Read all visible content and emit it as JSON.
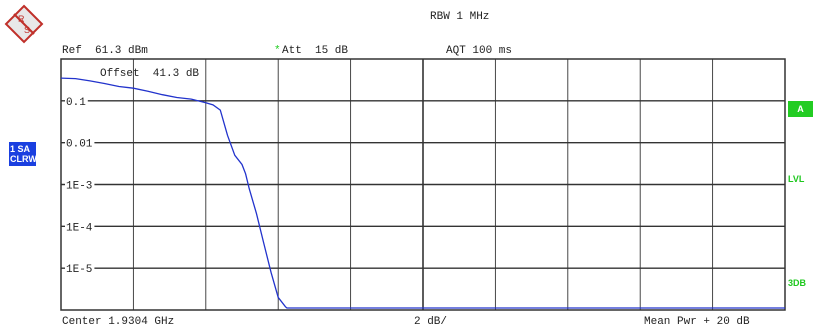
{
  "header": {
    "rbw": "RBW 1 MHz",
    "ref": "Ref  61.3 dBm",
    "att_star": "*",
    "att": "Att  15 dB",
    "aqt": "AQT 100 ms",
    "offset": "Offset  41.3 dB"
  },
  "side": {
    "trace_line1": "1 SA",
    "trace_line2": "CLRWR",
    "marker_a": "A",
    "lvl": "LVL",
    "db3": "3DB"
  },
  "footer": {
    "center": "Center 1.9304 GHz",
    "scale": "2 dB/",
    "mean": "Mean Pwr + 20 dB"
  },
  "colors": {
    "trace": "#2233cc",
    "grid": "#333333",
    "accent_green": "#22cc22",
    "badge_blue": "#1a3fe0"
  },
  "chart_data": {
    "type": "line",
    "ytick_labels": [
      "0.1",
      "0.01",
      "1E-3",
      "1E-4",
      "1E-5"
    ],
    "x_divisions": 10,
    "y_divisions": 6,
    "log_y": true,
    "series": [
      {
        "values_desc": "trace",
        "x": [
          0,
          0.2,
          0.4,
          0.6,
          0.8,
          1.0,
          1.2,
          1.4,
          1.6,
          1.8,
          2.0,
          2.1,
          2.2,
          2.3,
          2.4,
          2.5,
          2.55,
          2.6,
          2.7,
          2.8,
          2.9,
          3.0,
          3.1,
          3.12,
          3.2,
          4,
          5,
          6,
          7,
          8,
          9,
          10
        ],
        "y": [
          0.35,
          0.34,
          0.3,
          0.26,
          0.22,
          0.2,
          0.17,
          0.14,
          0.12,
          0.11,
          0.09,
          0.08,
          0.06,
          0.015,
          0.005,
          0.003,
          0.0018,
          0.0008,
          0.0002,
          4e-05,
          8e-06,
          2e-06,
          1.2e-06,
          9e-07,
          9e-07,
          9e-07,
          9e-07,
          9e-07,
          9e-07,
          9e-07,
          9e-07,
          9e-07
        ]
      }
    ]
  }
}
